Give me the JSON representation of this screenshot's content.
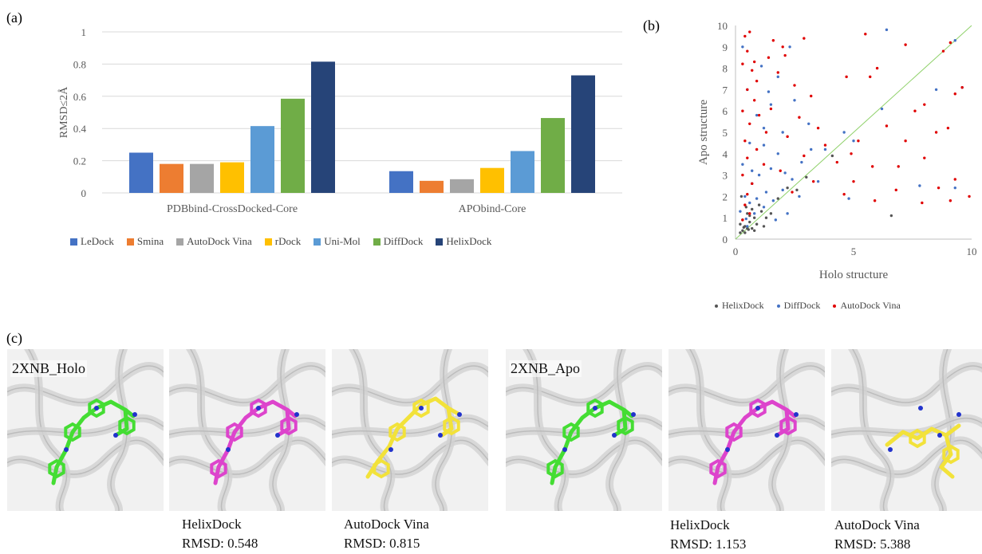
{
  "panels": {
    "a": "(a)",
    "b": "(b)",
    "c": "(c)"
  },
  "chart_data": [
    {
      "type": "bar",
      "categories": [
        "PDBbind-CrossDocked-Core",
        "APObind-Core"
      ],
      "ylabel": "RMSD≤2Å",
      "ylim": [
        0,
        1
      ],
      "yticks": [
        "0",
        "0.2",
        "0.4",
        "0.6",
        "0.8",
        "1"
      ],
      "legend_position": "bottom",
      "grid": true,
      "series": [
        {
          "name": "LeDock",
          "color": "#4472c4",
          "values": [
            0.25,
            0.135
          ]
        },
        {
          "name": "Smina",
          "color": "#ed7d31",
          "values": [
            0.18,
            0.075
          ]
        },
        {
          "name": "AutoDock Vina",
          "color": "#a5a5a5",
          "values": [
            0.18,
            0.085
          ]
        },
        {
          "name": "rDock",
          "color": "#ffc000",
          "values": [
            0.19,
            0.155
          ]
        },
        {
          "name": "Uni-Mol",
          "color": "#5b9bd5",
          "values": [
            0.415,
            0.26
          ]
        },
        {
          "name": "DiffDock",
          "color": "#70ad47",
          "values": [
            0.585,
            0.465
          ]
        },
        {
          "name": "HelixDock",
          "color": "#264478",
          "values": [
            0.815,
            0.73
          ]
        }
      ]
    },
    {
      "type": "scatter",
      "xlabel": "Holo structure",
      "ylabel": "Apo structure",
      "xlim": [
        0,
        10
      ],
      "ylim": [
        0,
        10
      ],
      "xticks": [
        "0",
        "5",
        "10"
      ],
      "yticks": [
        "0",
        "1",
        "2",
        "3",
        "4",
        "5",
        "6",
        "7",
        "8",
        "9",
        "10"
      ],
      "diagonal_color": "#8fd16a",
      "legend_position": "bottom",
      "series": [
        {
          "name": "HelixDock",
          "color": "#555555",
          "points": [
            [
              0.3,
              0.4
            ],
            [
              0.4,
              0.6
            ],
            [
              0.5,
              0.5
            ],
            [
              0.2,
              0.3
            ],
            [
              0.6,
              0.8
            ],
            [
              0.7,
              0.5
            ],
            [
              0.3,
              0.9
            ],
            [
              0.8,
              1.0
            ],
            [
              0.5,
              1.2
            ],
            [
              0.9,
              0.7
            ],
            [
              1.1,
              1.3
            ],
            [
              0.4,
              0.3
            ],
            [
              0.6,
              1.1
            ],
            [
              1.3,
              1.0
            ],
            [
              0.2,
              0.7
            ],
            [
              1.0,
              1.6
            ],
            [
              0.7,
              1.4
            ],
            [
              1.5,
              1.2
            ],
            [
              0.35,
              0.55
            ],
            [
              0.55,
              0.45
            ],
            [
              2.2,
              2.4
            ],
            [
              3.0,
              2.9
            ],
            [
              6.6,
              1.1
            ],
            [
              1.2,
              0.6
            ],
            [
              0.8,
              0.4
            ],
            [
              0.45,
              1.5
            ],
            [
              1.8,
              1.9
            ],
            [
              2.6,
              2.3
            ],
            [
              0.25,
              2.0
            ],
            [
              4.1,
              3.9
            ]
          ]
        },
        {
          "name": "DiffDock",
          "color": "#4472c4",
          "points": [
            [
              0.5,
              0.6
            ],
            [
              0.8,
              1.2
            ],
            [
              1.2,
              1.5
            ],
            [
              1.6,
              1.8
            ],
            [
              0.4,
              2.0
            ],
            [
              2.0,
              2.3
            ],
            [
              0.7,
              2.6
            ],
            [
              1.0,
              3.0
            ],
            [
              1.5,
              3.3
            ],
            [
              2.4,
              2.8
            ],
            [
              0.3,
              3.5
            ],
            [
              1.8,
              4.0
            ],
            [
              2.8,
              3.6
            ],
            [
              0.6,
              4.5
            ],
            [
              1.2,
              5.2
            ],
            [
              2.0,
              5.0
            ],
            [
              3.2,
              4.2
            ],
            [
              0.9,
              5.8
            ],
            [
              1.5,
              6.3
            ],
            [
              0.5,
              7.0
            ],
            [
              1.8,
              7.6
            ],
            [
              1.1,
              8.1
            ],
            [
              2.3,
              9.0
            ],
            [
              0.3,
              9.0
            ],
            [
              6.4,
              9.8
            ],
            [
              9.3,
              9.3
            ],
            [
              9.6,
              7.1
            ],
            [
              8.5,
              7.0
            ],
            [
              3.8,
              4.2
            ],
            [
              4.6,
              5.0
            ],
            [
              5.0,
              4.6
            ],
            [
              2.7,
              2.0
            ],
            [
              1.3,
              2.2
            ],
            [
              0.9,
              1.9
            ],
            [
              2.2,
              1.2
            ],
            [
              1.7,
              0.9
            ],
            [
              0.6,
              1.7
            ],
            [
              3.5,
              2.7
            ],
            [
              4.8,
              1.9
            ],
            [
              6.2,
              6.1
            ],
            [
              7.8,
              2.5
            ],
            [
              9.3,
              2.4
            ],
            [
              1.2,
              4.4
            ],
            [
              0.7,
              3.2
            ],
            [
              2.1,
              3.1
            ],
            [
              1.4,
              6.9
            ],
            [
              0.2,
              1.3
            ],
            [
              2.5,
              6.5
            ],
            [
              3.1,
              5.4
            ],
            [
              0.45,
              0.95
            ]
          ]
        },
        {
          "name": "AutoDock Vina",
          "color": "#e00000",
          "points": [
            [
              0.4,
              9.5
            ],
            [
              0.6,
              9.7
            ],
            [
              0.5,
              8.8
            ],
            [
              0.3,
              8.2
            ],
            [
              0.7,
              7.9
            ],
            [
              0.9,
              7.4
            ],
            [
              0.5,
              7.0
            ],
            [
              0.8,
              6.5
            ],
            [
              0.3,
              6.0
            ],
            [
              1.0,
              5.8
            ],
            [
              0.6,
              5.4
            ],
            [
              1.3,
              5.0
            ],
            [
              0.4,
              4.6
            ],
            [
              0.9,
              4.2
            ],
            [
              0.5,
              3.8
            ],
            [
              1.2,
              3.5
            ],
            [
              0.3,
              3.0
            ],
            [
              0.7,
              2.6
            ],
            [
              0.5,
              2.1
            ],
            [
              0.4,
              1.6
            ],
            [
              0.6,
              1.2
            ],
            [
              0.3,
              0.9
            ],
            [
              1.6,
              9.3
            ],
            [
              2.1,
              8.6
            ],
            [
              2.9,
              9.4
            ],
            [
              1.8,
              7.8
            ],
            [
              2.5,
              7.2
            ],
            [
              3.2,
              6.7
            ],
            [
              1.5,
              6.1
            ],
            [
              2.7,
              5.7
            ],
            [
              3.5,
              5.2
            ],
            [
              2.2,
              4.8
            ],
            [
              3.8,
              4.4
            ],
            [
              2.9,
              3.9
            ],
            [
              1.9,
              3.2
            ],
            [
              4.3,
              3.6
            ],
            [
              3.3,
              2.7
            ],
            [
              2.4,
              2.2
            ],
            [
              5.5,
              9.6
            ],
            [
              6.0,
              8.0
            ],
            [
              5.7,
              7.6
            ],
            [
              4.7,
              7.6
            ],
            [
              6.4,
              5.3
            ],
            [
              5.2,
              4.6
            ],
            [
              4.9,
              4.0
            ],
            [
              5.8,
              3.4
            ],
            [
              5.0,
              2.7
            ],
            [
              4.6,
              2.1
            ],
            [
              5.9,
              1.8
            ],
            [
              7.2,
              9.1
            ],
            [
              7.6,
              6.0
            ],
            [
              8.0,
              6.3
            ],
            [
              8.8,
              8.8
            ],
            [
              9.1,
              9.2
            ],
            [
              9.3,
              6.8
            ],
            [
              9.6,
              7.1
            ],
            [
              8.5,
              5.0
            ],
            [
              7.2,
              4.6
            ],
            [
              8.0,
              3.8
            ],
            [
              9.0,
              5.2
            ],
            [
              6.9,
              3.4
            ],
            [
              8.6,
              2.4
            ],
            [
              9.1,
              1.8
            ],
            [
              9.3,
              2.8
            ],
            [
              7.9,
              1.7
            ],
            [
              9.9,
              2.0
            ],
            [
              6.8,
              2.3
            ],
            [
              2.0,
              9.0
            ],
            [
              1.4,
              8.5
            ],
            [
              0.8,
              8.3
            ]
          ]
        }
      ]
    }
  ],
  "molecules": [
    {
      "title": "2XNB_Holo",
      "method": "",
      "rmsd": ""
    },
    {
      "title": "",
      "method": "HelixDock",
      "rmsd": "RMSD: 0.548"
    },
    {
      "title": "",
      "method": "AutoDock Vina",
      "rmsd": "RMSD: 0.815"
    },
    {
      "title": "2XNB_Apo",
      "method": "",
      "rmsd": ""
    },
    {
      "title": "",
      "method": "HelixDock",
      "rmsd": "RMSD: 1.153"
    },
    {
      "title": "",
      "method": "AutoDock Vina",
      "rmsd": "RMSD: 5.388"
    }
  ]
}
